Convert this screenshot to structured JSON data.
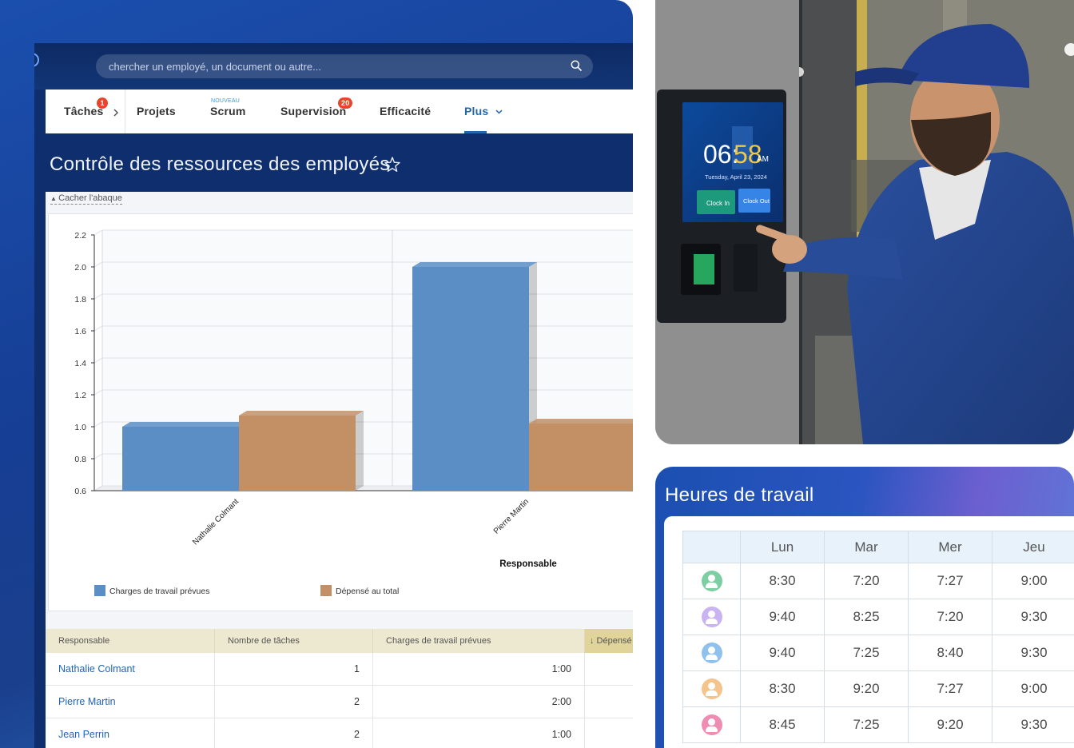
{
  "search": {
    "placeholder": "chercher un employé, un document ou autre..."
  },
  "tabs": [
    {
      "label": "Tâches",
      "badge": "1"
    },
    {
      "label": "Projets"
    },
    {
      "label": "Scrum",
      "tag": "NOUVEAU"
    },
    {
      "label": "Supervision",
      "badge": "20"
    },
    {
      "label": "Efficacité"
    },
    {
      "label": "Plus",
      "active": true
    }
  ],
  "page": {
    "title": "Contrôle des ressources des employés",
    "hide_chart": "Cacher l'abaque"
  },
  "chart_data": {
    "type": "bar",
    "categories": [
      "Nathalie Colmant",
      "Pierre Martin"
    ],
    "series": [
      {
        "name": "Charges de travail prévues",
        "values": [
          1.0,
          2.0
        ],
        "color": "#5b8ec4"
      },
      {
        "name": "Dépensé au total",
        "values": [
          1.07,
          1.02
        ],
        "color": "#c39066"
      }
    ],
    "xlabel": "Responsable",
    "ylabel": "",
    "ylim": [
      0.6,
      2.2
    ],
    "yticks": [
      "0.6",
      "0.8",
      "1.0",
      "1.2",
      "1.4",
      "1.6",
      "1.8",
      "2.0",
      "2.2"
    ],
    "grid": true,
    "legend": "bottom"
  },
  "table": {
    "headers": [
      "Responsable",
      "Nombre de tâches",
      "Charges de travail prévues",
      "↓ Dépensé"
    ],
    "rows": [
      {
        "name": "Nathalie Colmant",
        "tasks": "1",
        "planned": "1:00"
      },
      {
        "name": "Pierre Martin",
        "tasks": "2",
        "planned": "2:00"
      },
      {
        "name": "Jean Perrin",
        "tasks": "2",
        "planned": "1:00"
      }
    ]
  },
  "kiosk": {
    "time_hh": "06:",
    "time_mm": "58",
    "ampm": "AM",
    "date": "Tuesday, April 23, 2024",
    "clock_in": "Clock In",
    "clock_out": "Clock Out"
  },
  "hours": {
    "title": "Heures de travail",
    "days": [
      "Lun",
      "Mar",
      "Mer",
      "Jeu"
    ],
    "rows": [
      {
        "avatar_color": "#7ccfa3",
        "values": [
          "8:30",
          "7:20",
          "7:27",
          "9:00"
        ]
      },
      {
        "avatar_color": "#c9b3f0",
        "values": [
          "9:40",
          "8:25",
          "7:20",
          "9:30"
        ]
      },
      {
        "avatar_color": "#8ec1ee",
        "values": [
          "9:40",
          "7:25",
          "8:40",
          "9:30"
        ]
      },
      {
        "avatar_color": "#f4c48c",
        "values": [
          "8:30",
          "9:20",
          "7:27",
          "9:00"
        ]
      },
      {
        "avatar_color": "#ef8cb2",
        "values": [
          "8:45",
          "7:25",
          "9:20",
          "9:30"
        ]
      }
    ]
  }
}
